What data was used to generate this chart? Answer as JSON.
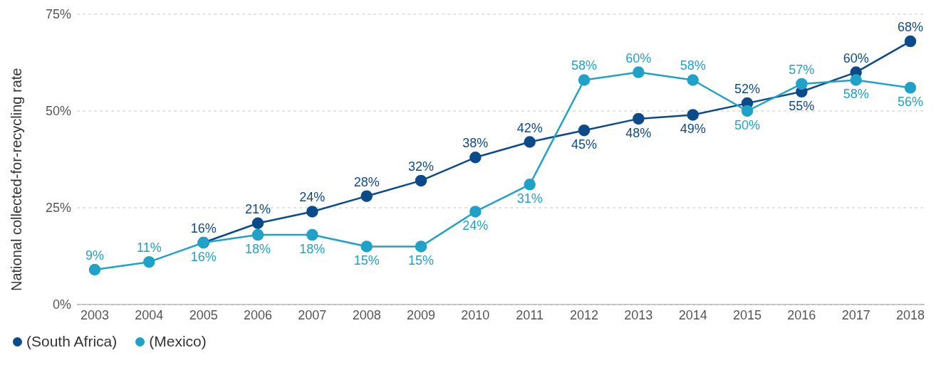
{
  "chart_data": {
    "type": "line",
    "ylabel": "National collected-for-recycling rate",
    "categories": [
      "2003",
      "2004",
      "2005",
      "2006",
      "2007",
      "2008",
      "2009",
      "2010",
      "2011",
      "2012",
      "2013",
      "2014",
      "2015",
      "2016",
      "2017",
      "2018"
    ],
    "series": [
      {
        "name": "(South Africa)",
        "color": "#0c4a8a",
        "values": [
          null,
          null,
          16,
          21,
          24,
          28,
          32,
          38,
          42,
          45,
          48,
          49,
          52,
          55,
          60,
          68
        ],
        "value_labels": [
          null,
          null,
          "16%",
          "21%",
          "24%",
          "28%",
          "32%",
          "38%",
          "42%",
          "45%",
          "48%",
          "49%",
          "52%",
          "55%",
          "60%",
          "68%"
        ]
      },
      {
        "name": "(Mexico)",
        "color": "#20a2c8",
        "values": [
          9,
          11,
          16,
          18,
          18,
          15,
          15,
          24,
          31,
          58,
          60,
          58,
          50,
          57,
          58,
          56
        ],
        "value_labels": [
          "9%",
          "11%",
          "16%",
          "18%",
          "18%",
          "15%",
          "15%",
          "24%",
          "31%",
          "58%",
          "60%",
          "58%",
          "50%",
          "57%",
          "58%",
          "56%"
        ]
      }
    ],
    "ylim": [
      0,
      75
    ],
    "yticks": [
      {
        "value": 0,
        "label": "0%"
      },
      {
        "value": 25,
        "label": "25%"
      },
      {
        "value": 50,
        "label": "50%"
      },
      {
        "value": 75,
        "label": "75%"
      }
    ],
    "grid": "y",
    "legend": "bottom left",
    "marker": "circle",
    "line_style": "solid"
  }
}
